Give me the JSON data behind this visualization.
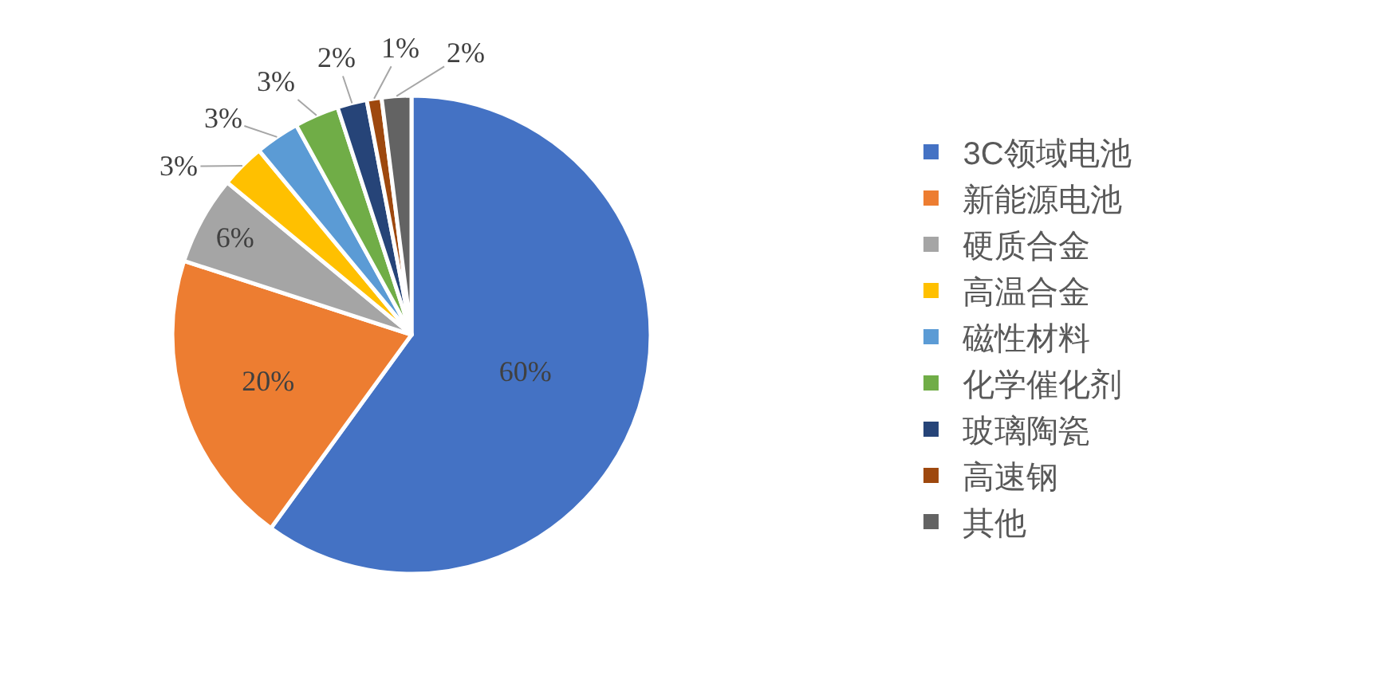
{
  "chart_data": {
    "type": "pie",
    "categories": [
      "3C领域电池",
      "新能源电池",
      "硬质合金",
      "高温合金",
      "磁性材料",
      "化学催化剂",
      "玻璃陶瓷",
      "高速钢",
      "其他"
    ],
    "values": [
      60,
      20,
      6,
      3,
      3,
      3,
      2,
      1,
      2
    ],
    "value_labels": [
      "60%",
      "20%",
      "6%",
      "3%",
      "3%",
      "3%",
      "2%",
      "1%",
      "2%"
    ],
    "colors": [
      "#4472c4",
      "#ed7d31",
      "#a5a5a5",
      "#ffc000",
      "#5b9bd5",
      "#70ad47",
      "#264478",
      "#9e480e",
      "#636363"
    ],
    "legend": "right"
  }
}
